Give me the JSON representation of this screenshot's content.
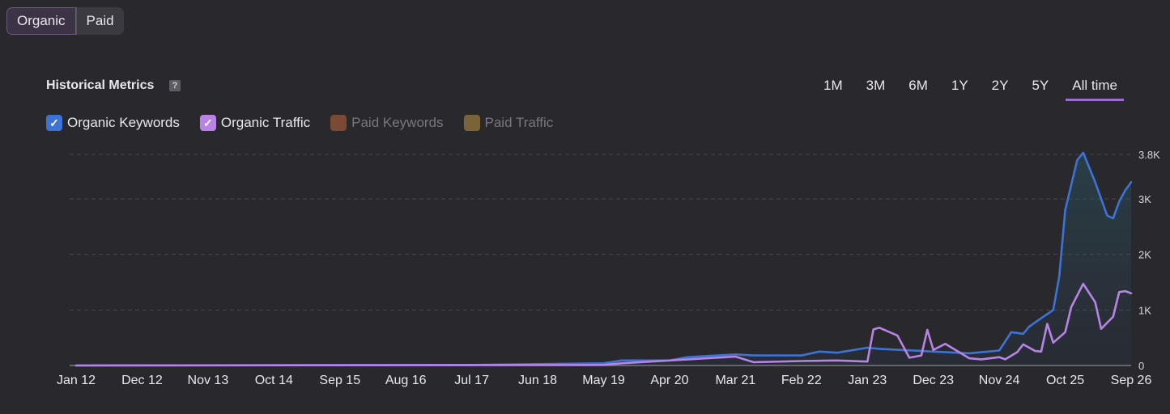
{
  "segment": {
    "organic_label": "Organic",
    "paid_label": "Paid"
  },
  "header": {
    "title": "Historical Metrics",
    "help": "?"
  },
  "ranges": [
    "1M",
    "3M",
    "6M",
    "1Y",
    "2Y",
    "5Y",
    "All time"
  ],
  "active_range": "All time",
  "legend": [
    {
      "label": "Organic Keywords",
      "color": "#3e73d6",
      "checked": true
    },
    {
      "label": "Organic Traffic",
      "color": "#b784e6",
      "checked": true
    },
    {
      "label": "Paid Keywords",
      "color": "#7a4a34",
      "checked": false
    },
    {
      "label": "Paid Traffic",
      "color": "#7a6338",
      "checked": false
    }
  ],
  "chart_data": {
    "type": "line",
    "x_tick_labels": [
      "Jan 12",
      "Dec 12",
      "Nov 13",
      "Oct 14",
      "Sep 15",
      "Aug 16",
      "Jul 17",
      "Jun 18",
      "May 19",
      "Apr 20",
      "Mar 21",
      "Feb 22",
      "Jan 23",
      "Dec 23",
      "Nov 24",
      "Oct 25",
      "Sep 26"
    ],
    "y_tick_labels": [
      "0",
      "1K",
      "2K",
      "3K",
      "3.8K"
    ],
    "ylim": [
      0,
      3800
    ],
    "grid": true,
    "series": [
      {
        "name": "Organic Keywords",
        "color": "#3e73d6",
        "points": [
          [
            "Jan 12",
            0
          ],
          [
            "Jul 17",
            10
          ],
          [
            "May 19",
            40
          ],
          [
            "Aug 19",
            90
          ],
          [
            "Apr 20",
            90
          ],
          [
            "Jul 20",
            150
          ],
          [
            "Mar 21",
            200
          ],
          [
            "Jun 21",
            180
          ],
          [
            "Feb 22",
            180
          ],
          [
            "May 22",
            250
          ],
          [
            "Aug 22",
            230
          ],
          [
            "Jan 23",
            320
          ],
          [
            "Mar 23",
            300
          ],
          [
            "Dec 23",
            250
          ],
          [
            "Jun 24",
            220
          ],
          [
            "Nov 24",
            270
          ],
          [
            "Jan 25",
            600
          ],
          [
            "Mar 25",
            570
          ],
          [
            "Apr 25",
            700
          ],
          [
            "Jun 25",
            850
          ],
          [
            "Aug 25",
            1000
          ],
          [
            "Sep 25",
            1600
          ],
          [
            "Oct 25",
            2800
          ],
          [
            "Dec 25",
            3700
          ],
          [
            "Jan 26",
            3830
          ],
          [
            "Mar 26",
            3300
          ],
          [
            "May 26",
            2700
          ],
          [
            "Jun 26",
            2650
          ],
          [
            "Jul 26",
            2950
          ],
          [
            "Aug 26",
            3150
          ],
          [
            "Sep 26",
            3300
          ]
        ]
      },
      {
        "name": "Organic Traffic",
        "color": "#b784e6",
        "points": [
          [
            "Jan 12",
            0
          ],
          [
            "May 19",
            10
          ],
          [
            "Aug 19",
            40
          ],
          [
            "Mar 21",
            160
          ],
          [
            "Jun 21",
            60
          ],
          [
            "Feb 22",
            80
          ],
          [
            "Aug 22",
            90
          ],
          [
            "Jan 23",
            70
          ],
          [
            "Feb 23",
            650
          ],
          [
            "Mar 23",
            680
          ],
          [
            "Jun 23",
            540
          ],
          [
            "Aug 23",
            140
          ],
          [
            "Oct 23",
            180
          ],
          [
            "Nov 23",
            640
          ],
          [
            "Dec 23",
            280
          ],
          [
            "Feb 24",
            390
          ],
          [
            "Apr 24",
            260
          ],
          [
            "Jun 24",
            130
          ],
          [
            "Aug 24",
            110
          ],
          [
            "Nov 24",
            150
          ],
          [
            "Dec 24",
            110
          ],
          [
            "Feb 25",
            240
          ],
          [
            "Mar 25",
            380
          ],
          [
            "May 25",
            260
          ],
          [
            "Jun 25",
            250
          ],
          [
            "Jul 25",
            750
          ],
          [
            "Aug 25",
            410
          ],
          [
            "Oct 25",
            600
          ],
          [
            "Nov 25",
            1050
          ],
          [
            "Jan 26",
            1470
          ],
          [
            "Mar 26",
            1140
          ],
          [
            "Apr 26",
            660
          ],
          [
            "Jun 26",
            880
          ],
          [
            "Jul 26",
            1320
          ],
          [
            "Aug 26",
            1340
          ],
          [
            "Sep 26",
            1300
          ]
        ]
      }
    ]
  }
}
